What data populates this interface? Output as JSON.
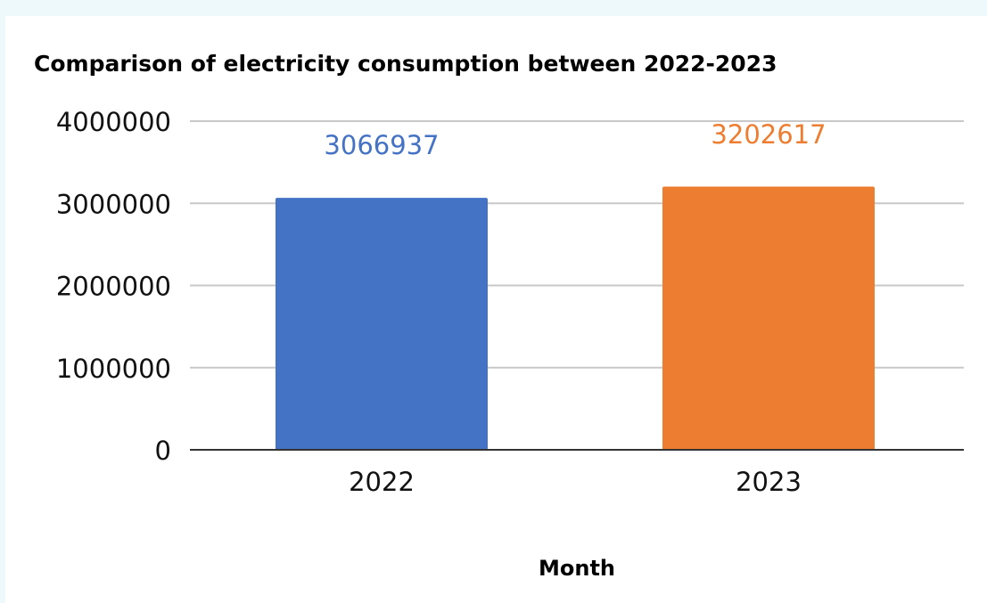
{
  "chart_data": {
    "type": "bar",
    "title": "Comparison of electricity consumption between 2022-2023",
    "xlabel": "Month",
    "ylabel": "",
    "categories": [
      "2022",
      "2023"
    ],
    "values": [
      3066937,
      3202617
    ],
    "data_labels": [
      "3066937",
      "3202617"
    ],
    "bar_colors": [
      "#4472c4",
      "#ed7d31"
    ],
    "ylim": [
      0,
      4000000
    ],
    "yticks": [
      0,
      1000000,
      2000000,
      3000000,
      4000000
    ],
    "ytick_labels": [
      "0",
      "1000000",
      "2000000",
      "3000000",
      "4000000"
    ],
    "grid": true,
    "legend": "none"
  }
}
